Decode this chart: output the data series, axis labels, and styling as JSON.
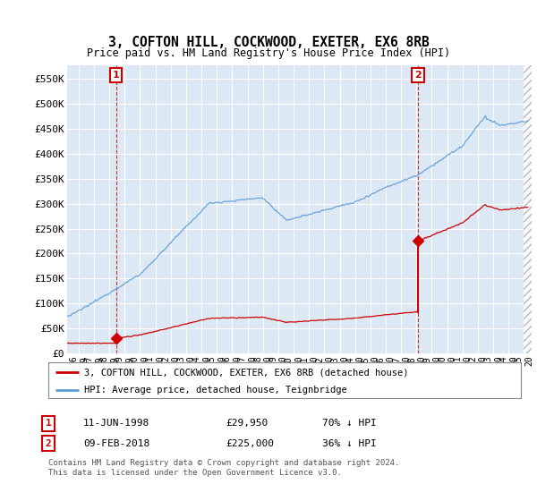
{
  "title": "3, COFTON HILL, COCKWOOD, EXETER, EX6 8RB",
  "subtitle": "Price paid vs. HM Land Registry's House Price Index (HPI)",
  "ylabel_ticks": [
    "£0",
    "£50K",
    "£100K",
    "£150K",
    "£200K",
    "£250K",
    "£300K",
    "£350K",
    "£400K",
    "£450K",
    "£500K",
    "£550K"
  ],
  "ylabel_values": [
    0,
    50000,
    100000,
    150000,
    200000,
    250000,
    300000,
    350000,
    400000,
    450000,
    500000,
    550000
  ],
  "ylim": [
    0,
    578000
  ],
  "xlim_start": 1995.25,
  "xlim_end": 2025.5,
  "background_color": "#ffffff",
  "plot_background": "#dce9f5",
  "grid_color": "#ffffff",
  "sale1_date": 1998.44,
  "sale1_price": 29950,
  "sale1_label": "1",
  "sale1_date_str": "11-JUN-1998",
  "sale1_price_str": "£29,950",
  "sale1_hpi_pct": "70% ↓ HPI",
  "sale2_date": 2018.1,
  "sale2_price": 225000,
  "sale2_label": "2",
  "sale2_date_str": "09-FEB-2018",
  "sale2_price_str": "£225,000",
  "sale2_hpi_pct": "36% ↓ HPI",
  "legend_label1": "3, COFTON HILL, COCKWOOD, EXETER, EX6 8RB (detached house)",
  "legend_label2": "HPI: Average price, detached house, Teignbridge",
  "footer1": "Contains HM Land Registry data © Crown copyright and database right 2024.",
  "footer2": "This data is licensed under the Open Government Licence v3.0.",
  "sale_color": "#cc0000",
  "hpi_color": "#5b9bd5",
  "annotation_box_color": "#cc0000"
}
